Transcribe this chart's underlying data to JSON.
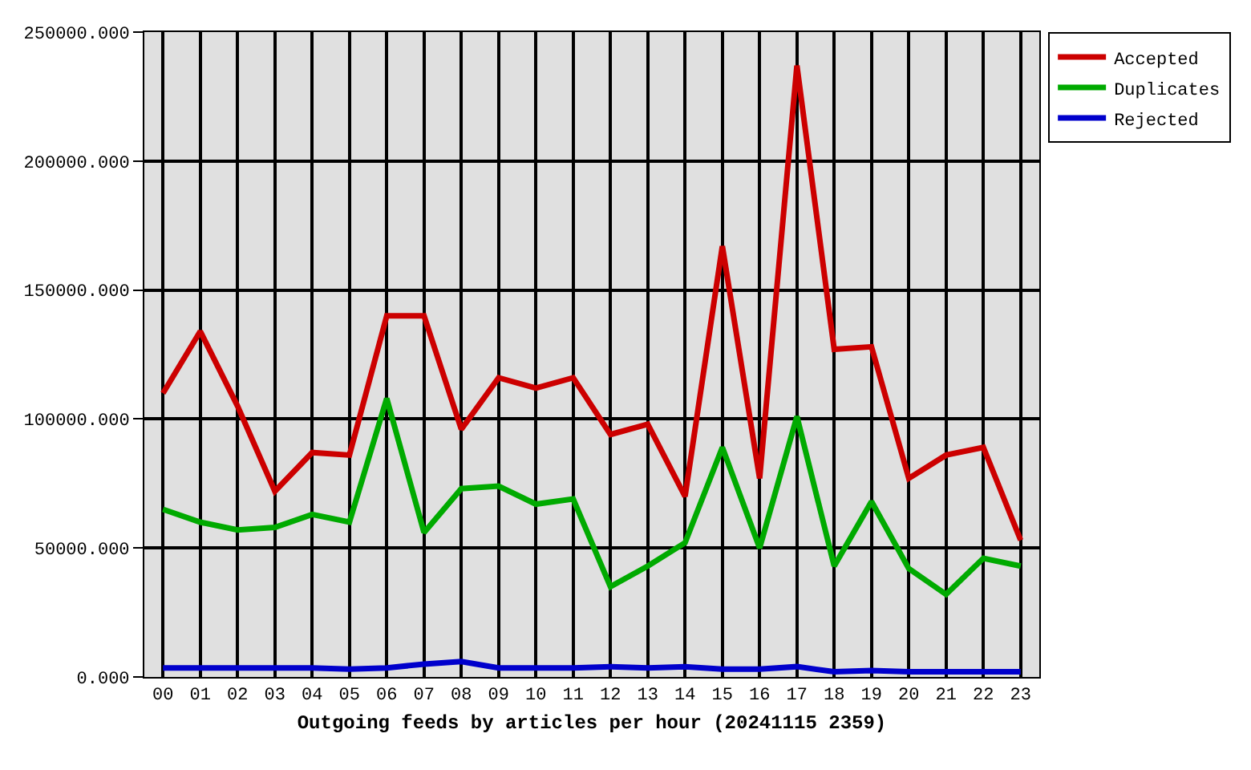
{
  "chart_data": {
    "type": "line",
    "xlabel": "Outgoing feeds by articles per hour (20241115 2359)",
    "categories": [
      "00",
      "01",
      "02",
      "03",
      "04",
      "05",
      "06",
      "07",
      "08",
      "09",
      "10",
      "11",
      "12",
      "13",
      "14",
      "15",
      "16",
      "17",
      "18",
      "19",
      "20",
      "21",
      "22",
      "23"
    ],
    "series": [
      {
        "name": "Accepted",
        "color": "#cc0000",
        "values": [
          110000,
          134000,
          105000,
          72000,
          87000,
          86000,
          140000,
          140000,
          96000,
          116000,
          112000,
          116000,
          94000,
          98000,
          70000,
          167000,
          77000,
          237000,
          127000,
          128000,
          77000,
          86000,
          89000,
          53000
        ]
      },
      {
        "name": "Duplicates",
        "color": "#00aa00",
        "values": [
          65000,
          60000,
          57000,
          58000,
          63000,
          60000,
          108000,
          56000,
          73000,
          74000,
          67000,
          69000,
          35000,
          43000,
          52000,
          89000,
          50000,
          101000,
          43000,
          68000,
          42000,
          32000,
          46000,
          43000
        ]
      },
      {
        "name": "Rejected",
        "color": "#0000cc",
        "values": [
          3500,
          3500,
          3500,
          3500,
          3500,
          3000,
          3500,
          5000,
          6000,
          3500,
          3500,
          3500,
          4000,
          3500,
          4000,
          3000,
          3000,
          4000,
          2000,
          2500,
          2000,
          2000,
          2000,
          2000
        ]
      }
    ],
    "ylim": [
      0,
      250000
    ],
    "yticks": [
      {
        "value": 0,
        "label": "0.000"
      },
      {
        "value": 50000,
        "label": "50000.000"
      },
      {
        "value": 100000,
        "label": "100000.000"
      },
      {
        "value": 150000,
        "label": "150000.000"
      },
      {
        "value": 200000,
        "label": "200000.000"
      },
      {
        "value": 250000,
        "label": "250000.000"
      }
    ],
    "grid": true,
    "legend": "top right",
    "line_style": "solid"
  }
}
